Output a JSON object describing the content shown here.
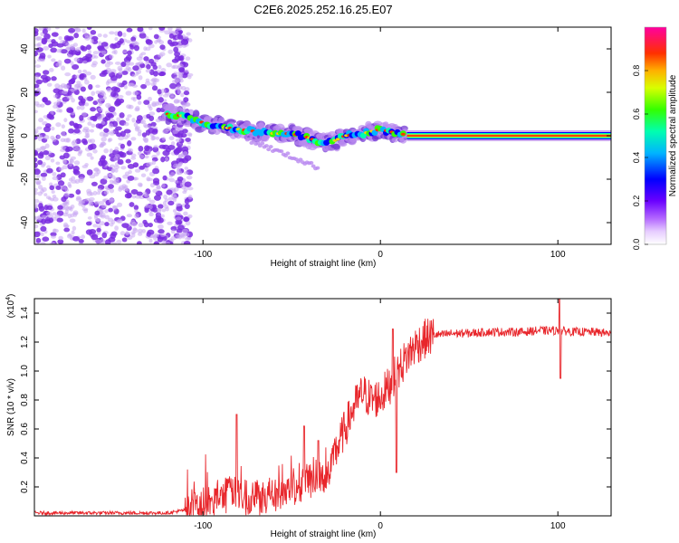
{
  "title": "C2E6.2025.252.16.25.E07",
  "colors": {
    "snr_line": "#e8262b",
    "scatter": "#7a2be0",
    "scatter_light": "#c9a8f2",
    "background": "#ffffff",
    "axis": "#000000"
  },
  "chart_data": [
    {
      "type": "heatmap",
      "xlabel": "Height of straight line (km)",
      "ylabel": "Frequency (Hz)",
      "xlim": [
        -195,
        130
      ],
      "ylim": [
        -50,
        50
      ],
      "x_ticks": [
        -100,
        0,
        100
      ],
      "x_tick_labels": [
        "-100",
        "0",
        "100"
      ],
      "y_ticks": [
        -40,
        -20,
        0,
        20,
        40
      ],
      "y_tick_labels": [
        "-40",
        "-20",
        "0",
        "20",
        "40"
      ],
      "noise_region_x": [
        -195,
        -112
      ],
      "ridge": {
        "x": [
          -120,
          -110,
          -100,
          -90,
          -80,
          -70,
          -60,
          -50,
          -40,
          -35,
          -30,
          -25,
          -20,
          -10,
          0,
          5,
          10,
          15,
          20,
          40,
          60,
          80,
          100,
          120,
          130
        ],
        "freq": [
          10,
          9,
          6,
          4,
          3,
          2,
          1,
          1,
          -1,
          -3,
          -3,
          -2,
          0,
          1,
          3,
          2,
          1,
          0.5,
          0,
          0,
          0,
          0,
          0,
          0,
          0
        ]
      },
      "colorbar": {
        "label": "Normalized spectral amplitude",
        "range": [
          0.0,
          1.0
        ],
        "ticks": [
          0.0,
          0.2,
          0.4,
          0.6,
          0.8
        ],
        "tick_labels": [
          "0.0",
          "0.2",
          "0.4",
          "0.6",
          "0.8"
        ]
      }
    },
    {
      "type": "line",
      "xlabel": "Height of straight line (km)",
      "ylabel": "SNR (10 * v/v)",
      "scale_label": "(x10",
      "scale_exp": "4",
      "scale_close": ")",
      "xlim": [
        -195,
        130
      ],
      "ylim": [
        0,
        1.5
      ],
      "x_ticks": [
        -100,
        0,
        100
      ],
      "x_tick_labels": [
        "-100",
        "0",
        "100"
      ],
      "y_ticks": [
        0.2,
        0.4,
        0.6,
        0.8,
        1.0,
        1.2,
        1.4
      ],
      "y_tick_labels": [
        "0.2",
        "0.4",
        "0.6",
        "0.8",
        "1.0",
        "1.2",
        "1.4"
      ],
      "envelope": {
        "x": [
          -195,
          -120,
          -110,
          -100,
          -90,
          -85,
          -80,
          -75,
          -70,
          -60,
          -50,
          -45,
          -40,
          -35,
          -30,
          -25,
          -20,
          -15,
          -10,
          -5,
          0,
          5,
          10,
          15,
          20,
          25,
          30,
          35,
          40,
          50,
          60,
          70,
          80,
          90,
          100,
          110,
          120,
          130
        ],
        "y": [
          0.02,
          0.02,
          0.04,
          0.08,
          0.12,
          0.18,
          0.15,
          0.12,
          0.14,
          0.15,
          0.2,
          0.22,
          0.25,
          0.28,
          0.3,
          0.45,
          0.6,
          0.75,
          0.85,
          0.8,
          0.82,
          0.9,
          1.0,
          1.1,
          1.18,
          1.22,
          1.25,
          1.25,
          1.26,
          1.26,
          1.27,
          1.27,
          1.27,
          1.28,
          1.28,
          1.27,
          1.27,
          1.26
        ]
      },
      "spikes": [
        {
          "x": -81,
          "y": 0.7
        },
        {
          "x": -43,
          "y": 0.62
        },
        {
          "x": -35,
          "y": 0.52
        },
        {
          "x": 7,
          "y": 1.29
        },
        {
          "x": 9,
          "y": 0.3
        },
        {
          "x": 101,
          "y": 1.52
        },
        {
          "x": 101.5,
          "y": 0.95
        }
      ]
    }
  ]
}
